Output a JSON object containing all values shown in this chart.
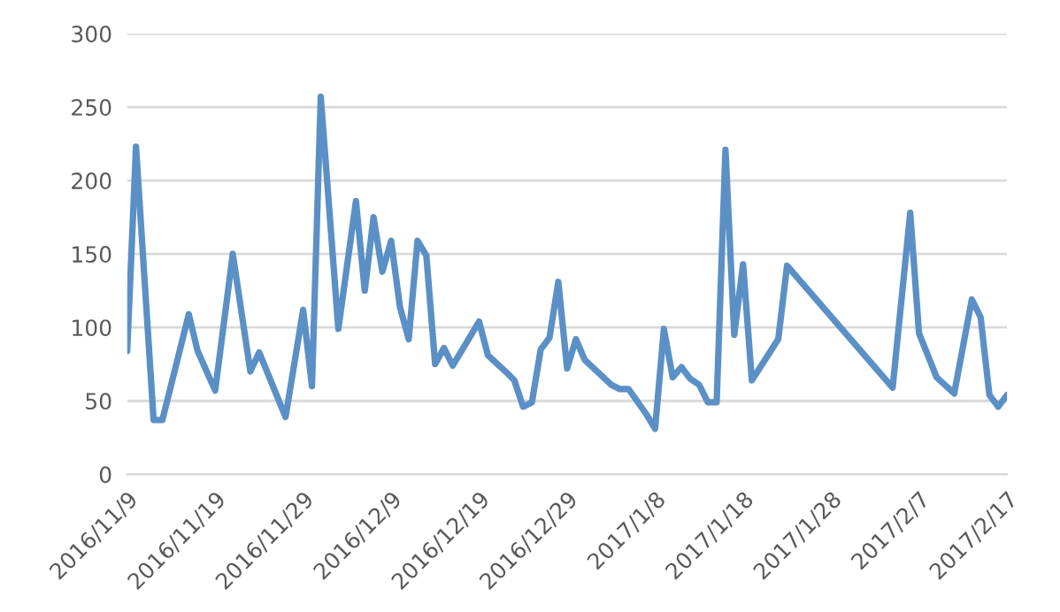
{
  "chart_data": {
    "type": "line",
    "x": [
      "2016-11-09",
      "2016-11-10",
      "2016-11-12",
      "2016-11-13",
      "2016-11-16",
      "2016-11-17",
      "2016-11-19",
      "2016-11-21",
      "2016-11-23",
      "2016-11-24",
      "2016-11-27",
      "2016-11-29",
      "2016-11-30",
      "2016-12-01",
      "2016-12-03",
      "2016-12-05",
      "2016-12-06",
      "2016-12-07",
      "2016-12-08",
      "2016-12-09",
      "2016-12-10",
      "2016-12-11",
      "2016-12-12",
      "2016-12-13",
      "2016-12-14",
      "2016-12-15",
      "2016-12-16",
      "2016-12-19",
      "2016-12-20",
      "2016-12-22",
      "2016-12-23",
      "2016-12-24",
      "2016-12-25",
      "2016-12-26",
      "2016-12-27",
      "2016-12-28",
      "2016-12-29",
      "2016-12-30",
      "2016-12-31",
      "2017-01-03",
      "2017-01-04",
      "2017-01-05",
      "2017-01-07",
      "2017-01-08",
      "2017-01-09",
      "2017-01-10",
      "2017-01-11",
      "2017-01-12",
      "2017-01-13",
      "2017-01-14",
      "2017-01-15",
      "2017-01-16",
      "2017-01-17",
      "2017-01-18",
      "2017-01-19",
      "2017-01-22",
      "2017-01-23",
      "2017-02-04",
      "2017-02-06",
      "2017-02-07",
      "2017-02-09",
      "2017-02-11",
      "2017-02-13",
      "2017-02-14",
      "2017-02-15",
      "2017-02-16",
      "2017-02-17"
    ],
    "series": [
      {
        "color": "#5b90c6",
        "values": [
          84,
          223,
          37,
          37,
          109,
          84,
          57,
          150,
          70,
          83,
          39,
          112,
          60,
          257,
          99,
          186,
          125,
          175,
          138,
          159,
          114,
          92,
          159,
          149,
          75,
          86,
          74,
          104,
          81,
          70,
          64,
          46,
          49,
          85,
          93,
          131,
          72,
          92,
          78,
          61,
          58,
          58,
          41,
          31,
          99,
          66,
          73,
          65,
          61,
          49,
          49,
          221,
          95,
          143,
          64,
          92,
          142,
          59,
          178,
          96,
          66,
          55,
          119,
          107,
          54,
          46,
          54
        ]
      }
    ],
    "xlim": [
      "2016-11-09",
      "2017-02-17"
    ],
    "xticks": [
      {
        "value": "2016-11-09",
        "label": "2016/11/9"
      },
      {
        "value": "2016-11-19",
        "label": "2016/11/19"
      },
      {
        "value": "2016-11-29",
        "label": "2016/11/29"
      },
      {
        "value": "2016-12-09",
        "label": "2016/12/9"
      },
      {
        "value": "2016-12-19",
        "label": "2016/12/19"
      },
      {
        "value": "2016-12-29",
        "label": "2016/12/29"
      },
      {
        "value": "2017-01-08",
        "label": "2017/1/8"
      },
      {
        "value": "2017-01-18",
        "label": "2017/1/18"
      },
      {
        "value": "2017-01-28",
        "label": "2017/1/28"
      },
      {
        "value": "2017-02-07",
        "label": "2017/2/7"
      },
      {
        "value": "2017-02-17",
        "label": "2017/2/17"
      }
    ],
    "ylim": [
      0,
      300
    ],
    "yticks": [
      0,
      50,
      100,
      150,
      200,
      250,
      300
    ],
    "grid": "y",
    "marker": "none",
    "line_style": "solid"
  }
}
